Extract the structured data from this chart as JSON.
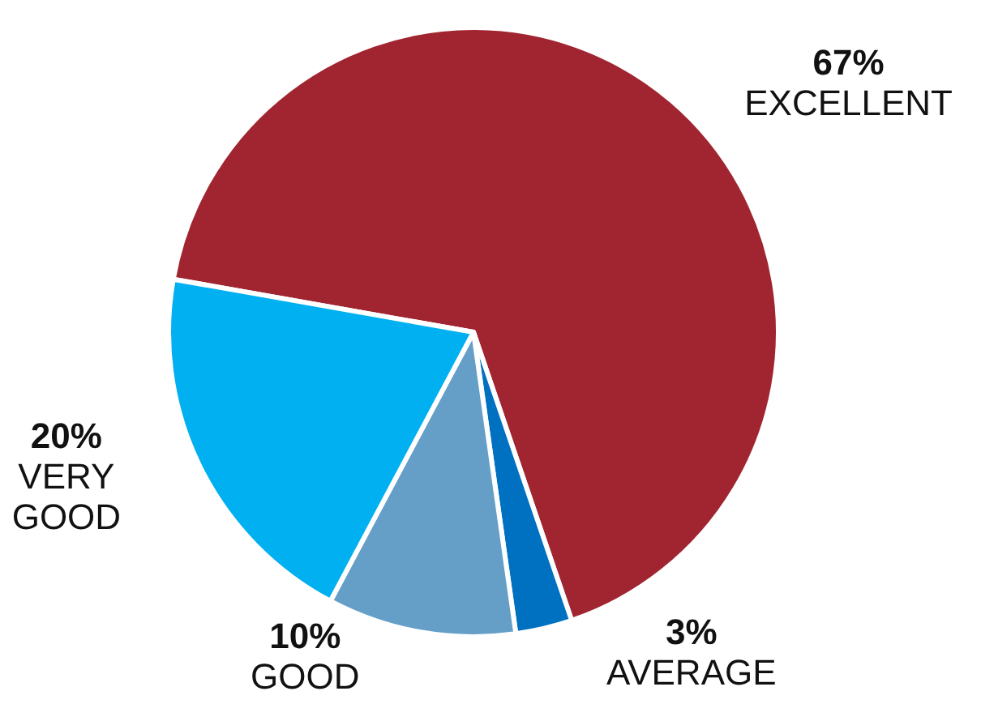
{
  "chart_data": {
    "type": "pie",
    "categories": [
      "EXCELLENT",
      "AVERAGE",
      "GOOD",
      "VERY GOOD"
    ],
    "values": [
      67,
      3,
      10,
      20
    ],
    "value_labels": [
      "67%",
      "3%",
      "10%",
      "20%"
    ],
    "colors": [
      "#a02530",
      "#0070c0",
      "#659fc8",
      "#00b0f0"
    ],
    "legend": false
  }
}
